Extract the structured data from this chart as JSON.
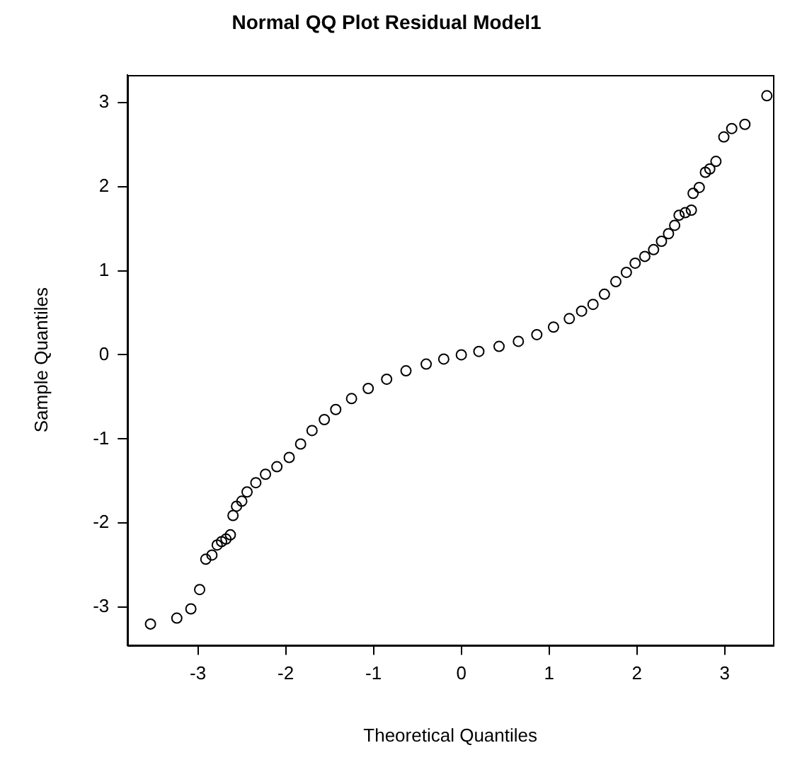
{
  "chart_data": {
    "type": "scatter",
    "title": "Normal QQ Plot Residual Model1",
    "xlabel": "Theoretical Quantiles",
    "ylabel": "Sample Quantiles",
    "marker": "circle",
    "legend": false,
    "grid": false,
    "xlim": [
      -3.8,
      3.55
    ],
    "ylim": [
      -3.45,
      3.33
    ],
    "xticks": [
      -3,
      -2,
      -1,
      0,
      1,
      2,
      3
    ],
    "yticks": [
      -3,
      -2,
      -1,
      0,
      1,
      2,
      3
    ],
    "series": [
      {
        "color": "#000000",
        "x": [
          -3.54,
          -3.24,
          -3.08,
          -2.98,
          -2.91,
          -2.84,
          -2.78,
          -2.73,
          -2.68,
          -2.63,
          -2.6,
          -2.56,
          -2.5,
          -2.44,
          -2.34,
          -2.23,
          -2.1,
          -1.96,
          -1.83,
          -1.7,
          -1.56,
          -1.43,
          -1.25,
          -1.06,
          -0.85,
          -0.63,
          -0.4,
          -0.2,
          0,
          0.2,
          0.43,
          0.65,
          0.86,
          1.05,
          1.23,
          1.37,
          1.5,
          1.63,
          1.76,
          1.88,
          1.98,
          2.09,
          2.19,
          2.28,
          2.36,
          2.43,
          2.48,
          2.55,
          2.62,
          2.64,
          2.71,
          2.78,
          2.83,
          2.9,
          2.99,
          3.08,
          3.23,
          3.48
        ],
        "values": [
          -3.2,
          -3.13,
          -3.02,
          -2.79,
          -2.43,
          -2.38,
          -2.26,
          -2.22,
          -2.19,
          -2.14,
          -1.91,
          -1.8,
          -1.74,
          -1.63,
          -1.52,
          -1.42,
          -1.33,
          -1.22,
          -1.06,
          -0.9,
          -0.77,
          -0.65,
          -0.52,
          -0.4,
          -0.29,
          -0.19,
          -0.11,
          -0.05,
          0,
          0.04,
          0.1,
          0.16,
          0.24,
          0.33,
          0.43,
          0.52,
          0.6,
          0.72,
          0.87,
          0.98,
          1.09,
          1.17,
          1.25,
          1.35,
          1.44,
          1.54,
          1.66,
          1.69,
          1.72,
          1.92,
          1.99,
          2.17,
          2.21,
          2.3,
          2.59,
          2.69,
          2.74,
          3.08
        ]
      }
    ]
  }
}
